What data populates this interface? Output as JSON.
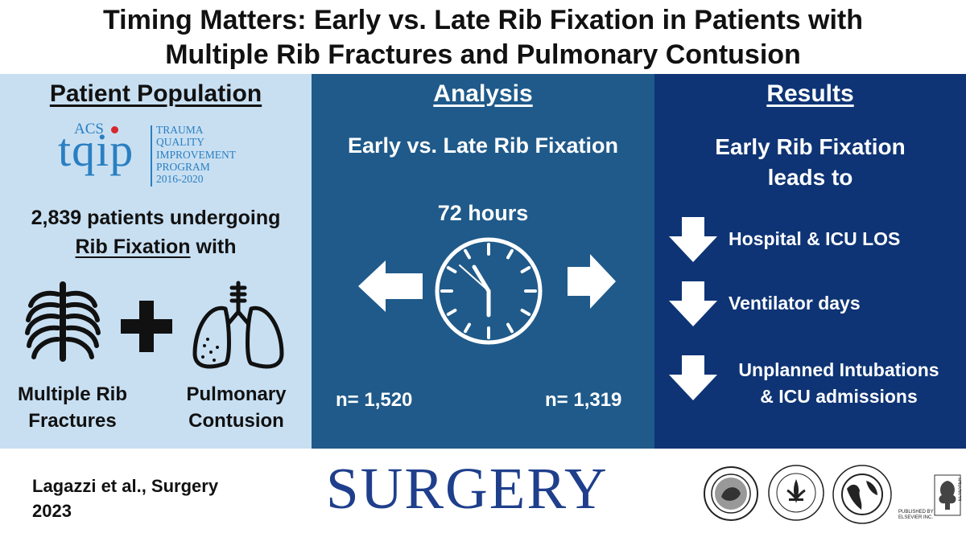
{
  "title": {
    "line1": "Timing Matters: Early vs. Late Rib Fixation in Patients with",
    "line2": "Multiple Rib Fractures and Pulmonary Contusion"
  },
  "population": {
    "heading": "Patient Population",
    "logo": {
      "acs": "ACS",
      "brand": "tqip",
      "lines": [
        "TRAUMA",
        "QUALITY",
        "IMPROVEMENT",
        "PROGRAM",
        "2016-2020"
      ]
    },
    "patients_line1": "2,839 patients undergoing",
    "patients_emph": "Rib Fixation",
    "patients_tail": " with",
    "plus": "+",
    "label_left": [
      "Multiple Rib",
      "Fractures"
    ],
    "label_right": [
      "Pulmonary",
      "Contusion"
    ]
  },
  "analysis": {
    "heading": "Analysis",
    "subtitle": "Early vs. Late Rib Fixation",
    "threshold": "72 hours",
    "n_early": "n= 1,520",
    "n_late": "n= 1,319"
  },
  "results": {
    "heading": "Results",
    "lead_line1": "Early Rib Fixation",
    "lead_line2": "leads to",
    "items": [
      {
        "lines": [
          "Hospital & ICU LOS"
        ]
      },
      {
        "lines": [
          "Ventilator days"
        ]
      },
      {
        "lines": [
          "Unplanned Intubations",
          "& ICU admissions"
        ]
      }
    ]
  },
  "footer": {
    "citation_line1": "Lagazzi et al., Surgery",
    "citation_line2": "2023",
    "journal": "SURGERY",
    "publisher": [
      "PUBLISHED BY",
      "ELSEVIER INC."
    ],
    "elsevier": "ELSEVIER"
  },
  "icons": [
    "rib-cage-icon",
    "lungs-icon",
    "clock-icon",
    "left-arrow-icon",
    "right-arrow-icon",
    "down-arrow-icon",
    "society-seal-icon",
    "elsevier-tree-icon"
  ],
  "colors": {
    "panel1": "#c8dff2",
    "panel2": "#1f5a8a",
    "panel3": "#0e3475",
    "journal": "#1f3f8c",
    "tqip_blue": "#2a7fc1",
    "tqip_red": "#d6282e"
  }
}
